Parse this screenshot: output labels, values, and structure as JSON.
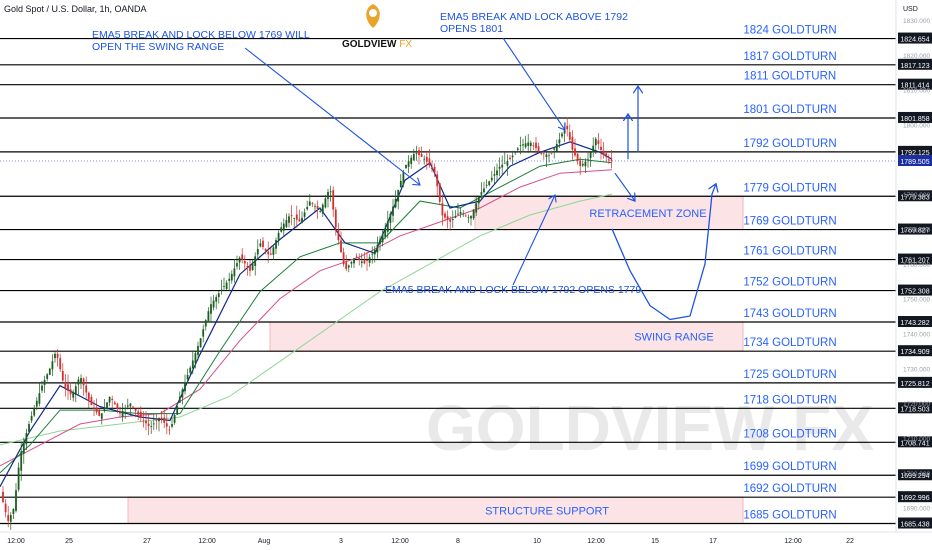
{
  "header": {
    "symbol_line": "Gold Spot / U.S. Dollar, 1h, OANDA",
    "currency": "USD"
  },
  "logo": {
    "text_gold": "GOLDVIEW",
    "text_fx": " FX",
    "watermark": "GOLDVIEW FX"
  },
  "colors": {
    "level_line": "#000000",
    "label_blue": "#2962ff",
    "annotation_blue": "#1e53e5",
    "zone_fill": "#fbe3e6",
    "zone_border": "#f4b6be",
    "candle_up": "#1b5e20",
    "candle_down": "#d32f2f",
    "ema_fast": "#0d2b8a",
    "ema_mid": "#1b7f3a",
    "ema_pink": "#d64f8c",
    "ema_slow": "#8fd694",
    "price_tag": "#1c2fa0",
    "logo_gold": "#e8a52a"
  },
  "chart_data": {
    "type": "candlestick",
    "title": "Gold Spot / U.S. Dollar, 1h, OANDA",
    "ylim": [
      1683,
      1834
    ],
    "y_ticks": [
      1690.0,
      1700.0,
      1710.0,
      1720.0,
      1730.0,
      1740.0,
      1750.0,
      1760.0,
      1770.0,
      1780.0,
      1790.0,
      1800.0,
      1810.0,
      1820.0,
      1830.0
    ],
    "y_tick_labels": [
      "1690.000",
      "1700.000",
      "1710.000",
      "1720.000",
      "1730.000",
      "1740.000",
      "1750.000",
      "1760.000",
      "1770.000",
      "1780.000",
      "1790.000",
      "1800.000",
      "1810.000",
      "1820.000",
      "1830.000"
    ],
    "x_ticks": [
      "12:00",
      "25",
      "27",
      "12:00",
      "Aug",
      "3",
      "12:00",
      "8",
      "10",
      "12:00",
      "15",
      "17",
      "12:00",
      "22"
    ],
    "levels": [
      {
        "price": 1824.654,
        "label": "1824 GOLDTURN",
        "tag": "1824.654"
      },
      {
        "price": 1817.123,
        "label": "1817 GOLDTURN",
        "tag": "1817.123"
      },
      {
        "price": 1811.414,
        "label": "1811 GOLDTURN",
        "tag": "1811.414"
      },
      {
        "price": 1801.858,
        "label": "1801 GOLDTURN",
        "tag": "1801.858"
      },
      {
        "price": 1792.125,
        "label": "1792 GOLDTURN",
        "tag": "1792.125"
      },
      {
        "price": 1779.383,
        "label": "1779 GOLDTURN",
        "tag": "1779.383"
      },
      {
        "price": 1769.827,
        "label": "1769 GOLDTURN",
        "tag": "1769.827"
      },
      {
        "price": 1761.207,
        "label": "1761 GOLDTURN",
        "tag": "1761.207"
      },
      {
        "price": 1752.308,
        "label": "1752 GOLDTURN",
        "tag": "1752.308"
      },
      {
        "price": 1743.282,
        "label": "1743 GOLDTURN",
        "tag": "1743.282"
      },
      {
        "price": 1734.909,
        "label": "1734 GOLDTURN",
        "tag": "1734.909"
      },
      {
        "price": 1725.812,
        "label": "1725 GOLDTURN",
        "tag": "1725.812"
      },
      {
        "price": 1718.503,
        "label": "1718 GOLDTURN",
        "tag": "1718.503"
      },
      {
        "price": 1708.741,
        "label": "1708 GOLDTURN",
        "tag": "1708.741"
      },
      {
        "price": 1699.294,
        "label": "1699 GOLDTURN",
        "tag": "1699.294"
      },
      {
        "price": 1692.996,
        "label": "1692 GOLDTURN",
        "tag": "1692.996"
      },
      {
        "price": 1685.438,
        "label": "1685 GOLDTURN",
        "tag": "1685.438"
      }
    ],
    "current_price": {
      "price": 1789.505,
      "tag": "1789.505"
    },
    "zones": [
      {
        "label": "RETRACEMENT ZONE",
        "top": 1779.383,
        "bottom": 1769.827
      },
      {
        "label": "SWING RANGE",
        "top": 1743.282,
        "bottom": 1734.909
      },
      {
        "label": "STRUCTURE SUPPORT",
        "top": 1692.996,
        "bottom": 1685.438
      }
    ],
    "annotations": [
      {
        "lines": [
          "EMA5 BREAK AND LOCK BELOW 1769 WILL",
          "OPEN THE SWING RANGE"
        ]
      },
      {
        "lines": [
          "EMA5 BREAK AND LOCK ABOVE 1792",
          "OPENS 1801"
        ]
      },
      {
        "lines": [
          "EMA5 BREAK AND LOCK BELOW 1792 OPENS 1779"
        ]
      }
    ],
    "price_path": [
      [
        0,
        1695
      ],
      [
        8,
        1686
      ],
      [
        14,
        1690
      ],
      [
        20,
        1705
      ],
      [
        30,
        1715
      ],
      [
        42,
        1725
      ],
      [
        50,
        1730
      ],
      [
        56,
        1735
      ],
      [
        64,
        1725
      ],
      [
        72,
        1722
      ],
      [
        80,
        1728
      ],
      [
        90,
        1720
      ],
      [
        100,
        1716
      ],
      [
        110,
        1722
      ],
      [
        120,
        1717
      ],
      [
        130,
        1720
      ],
      [
        140,
        1716
      ],
      [
        150,
        1713
      ],
      [
        160,
        1716
      ],
      [
        170,
        1712
      ],
      [
        180,
        1722
      ],
      [
        190,
        1730
      ],
      [
        200,
        1738
      ],
      [
        210,
        1748
      ],
      [
        220,
        1752
      ],
      [
        230,
        1756
      ],
      [
        240,
        1762
      ],
      [
        250,
        1758
      ],
      [
        260,
        1766
      ],
      [
        270,
        1762
      ],
      [
        280,
        1770
      ],
      [
        290,
        1774
      ],
      [
        300,
        1772
      ],
      [
        310,
        1778
      ],
      [
        320,
        1775
      ],
      [
        330,
        1782
      ],
      [
        336,
        1770
      ],
      [
        345,
        1758
      ],
      [
        355,
        1762
      ],
      [
        365,
        1760
      ],
      [
        375,
        1764
      ],
      [
        385,
        1770
      ],
      [
        395,
        1778
      ],
      [
        405,
        1788
      ],
      [
        415,
        1792
      ],
      [
        425,
        1790
      ],
      [
        435,
        1786
      ],
      [
        442,
        1774
      ],
      [
        450,
        1772
      ],
      [
        460,
        1775
      ],
      [
        470,
        1773
      ],
      [
        480,
        1780
      ],
      [
        490,
        1784
      ],
      [
        500,
        1788
      ],
      [
        510,
        1790
      ],
      [
        520,
        1794
      ],
      [
        530,
        1795
      ],
      [
        540,
        1792
      ],
      [
        550,
        1791
      ],
      [
        560,
        1796
      ],
      [
        566,
        1800
      ],
      [
        572,
        1793
      ],
      [
        580,
        1788
      ],
      [
        588,
        1790
      ],
      [
        596,
        1796
      ],
      [
        602,
        1792
      ],
      [
        608,
        1790
      ],
      [
        612,
        1789.5
      ]
    ],
    "ema_fast": [
      [
        0,
        1696
      ],
      [
        30,
        1712
      ],
      [
        60,
        1725
      ],
      [
        100,
        1719
      ],
      [
        140,
        1716
      ],
      [
        170,
        1715
      ],
      [
        200,
        1734
      ],
      [
        240,
        1757
      ],
      [
        280,
        1767
      ],
      [
        320,
        1776
      ],
      [
        345,
        1766
      ],
      [
        375,
        1763
      ],
      [
        405,
        1784
      ],
      [
        430,
        1789
      ],
      [
        450,
        1776
      ],
      [
        480,
        1778
      ],
      [
        510,
        1788
      ],
      [
        540,
        1792
      ],
      [
        570,
        1795
      ],
      [
        600,
        1792
      ],
      [
        612,
        1790
      ]
    ],
    "ema_mid": [
      [
        0,
        1700
      ],
      [
        30,
        1708
      ],
      [
        60,
        1718
      ],
      [
        100,
        1718
      ],
      [
        140,
        1717
      ],
      [
        180,
        1717
      ],
      [
        220,
        1735
      ],
      [
        260,
        1752
      ],
      [
        300,
        1762
      ],
      [
        340,
        1766
      ],
      [
        380,
        1766
      ],
      [
        420,
        1778
      ],
      [
        460,
        1776
      ],
      [
        500,
        1782
      ],
      [
        540,
        1788
      ],
      [
        580,
        1790
      ],
      [
        612,
        1789
      ]
    ],
    "ema_pink": [
      [
        0,
        1702
      ],
      [
        40,
        1708
      ],
      [
        80,
        1714
      ],
      [
        120,
        1716
      ],
      [
        160,
        1717
      ],
      [
        200,
        1724
      ],
      [
        240,
        1738
      ],
      [
        280,
        1750
      ],
      [
        320,
        1758
      ],
      [
        360,
        1762
      ],
      [
        400,
        1768
      ],
      [
        440,
        1772
      ],
      [
        480,
        1776
      ],
      [
        520,
        1782
      ],
      [
        560,
        1786
      ],
      [
        612,
        1787
      ]
    ],
    "ema_slow": [
      [
        0,
        1708
      ],
      [
        60,
        1712
      ],
      [
        120,
        1714
      ],
      [
        180,
        1716
      ],
      [
        230,
        1722
      ],
      [
        280,
        1732
      ],
      [
        330,
        1742
      ],
      [
        380,
        1752
      ],
      [
        430,
        1760
      ],
      [
        480,
        1768
      ],
      [
        530,
        1774
      ],
      [
        580,
        1778
      ],
      [
        612,
        1780
      ]
    ],
    "projection_arrows": [
      {
        "from": [
          628,
          1790
        ],
        "to": [
          628,
          1803
        ],
        "note": "up-to-1801"
      },
      {
        "from": [
          638,
          1792
        ],
        "to": [
          638,
          1811
        ],
        "note": "up-to-1811"
      },
      {
        "from": [
          615,
          1786
        ],
        "to": [
          635,
          1778
        ],
        "note": "down-to-1779"
      }
    ],
    "projection_curve": [
      [
        612,
        1770
      ],
      [
        630,
        1758
      ],
      [
        650,
        1748
      ],
      [
        670,
        1744
      ],
      [
        690,
        1745
      ],
      [
        705,
        1760
      ],
      [
        712,
        1780
      ],
      [
        716,
        1783
      ]
    ]
  }
}
